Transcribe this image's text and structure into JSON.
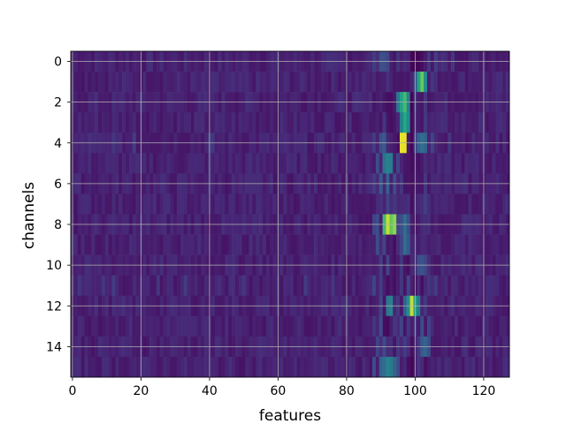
{
  "chart_data": {
    "type": "heatmap",
    "title": "",
    "xlabel": "features",
    "ylabel": "channels",
    "n_rows": 16,
    "n_cols": 128,
    "xlim": [
      -0.5,
      127.5
    ],
    "ylim": [
      15.5,
      -0.5
    ],
    "x_ticks": [
      0,
      20,
      40,
      60,
      80,
      100,
      120
    ],
    "y_ticks": [
      0,
      2,
      4,
      6,
      8,
      10,
      12,
      14
    ],
    "grid": true,
    "colormap": "viridis",
    "value_range": [
      0,
      1
    ],
    "background_level": 0.12,
    "features": [
      {
        "row": 0,
        "entries": [
          [
            88,
            0.22
          ],
          [
            90,
            0.3
          ],
          [
            91,
            0.3
          ],
          [
            92,
            0.25
          ],
          [
            95,
            0.18
          ],
          [
            99,
            0.02
          ],
          [
            100,
            0.0
          ],
          [
            101,
            0.02
          ],
          [
            102,
            0.05
          ],
          [
            104,
            0.2
          ],
          [
            106,
            0.22
          ],
          [
            108,
            0.18
          ],
          [
            111,
            0.2
          ]
        ]
      },
      {
        "row": 1,
        "entries": [
          [
            92,
            0.18
          ],
          [
            96,
            0.08
          ],
          [
            98,
            0.08
          ],
          [
            100,
            0.3
          ],
          [
            101,
            0.72
          ],
          [
            102,
            0.85
          ],
          [
            103,
            0.6
          ],
          [
            105,
            0.2
          ]
        ]
      },
      {
        "row": 2,
        "entries": [
          [
            90,
            0.12
          ],
          [
            92,
            0.05
          ],
          [
            93,
            0.05
          ],
          [
            95,
            0.5
          ],
          [
            96,
            0.72
          ],
          [
            97,
            0.8
          ],
          [
            98,
            0.55
          ],
          [
            99,
            0.02
          ],
          [
            100,
            0.18
          ],
          [
            103,
            0.2
          ]
        ]
      },
      {
        "row": 3,
        "entries": [
          [
            91,
            0.2
          ],
          [
            93,
            0.05
          ],
          [
            94,
            0.08
          ],
          [
            96,
            0.55
          ],
          [
            97,
            0.75
          ],
          [
            98,
            0.6
          ],
          [
            99,
            0.04
          ],
          [
            101,
            0.1
          ],
          [
            103,
            0.2
          ]
        ]
      },
      {
        "row": 4,
        "entries": [
          [
            5,
            0.18
          ],
          [
            12,
            0.2
          ],
          [
            18,
            0.22
          ],
          [
            40,
            0.2
          ],
          [
            41,
            0.2
          ],
          [
            86,
            0.15
          ],
          [
            88,
            0.22
          ],
          [
            90,
            0.3
          ],
          [
            91,
            0.35
          ],
          [
            93,
            0.12
          ],
          [
            95,
            0.05
          ],
          [
            96,
            0.98
          ],
          [
            97,
            0.98
          ],
          [
            99,
            0.02
          ],
          [
            100,
            0.22
          ],
          [
            101,
            0.4
          ],
          [
            102,
            0.45
          ],
          [
            103,
            0.4
          ],
          [
            105,
            0.25
          ],
          [
            110,
            0.2
          ]
        ]
      },
      {
        "row": 5,
        "entries": [
          [
            89,
            0.3
          ],
          [
            91,
            0.48
          ],
          [
            92,
            0.55
          ],
          [
            93,
            0.52
          ],
          [
            95,
            0.25
          ],
          [
            99,
            0.04
          ],
          [
            101,
            0.06
          ],
          [
            102,
            0.1
          ],
          [
            103,
            0.15
          ]
        ]
      },
      {
        "row": 6,
        "entries": [
          [
            88,
            0.22
          ],
          [
            90,
            0.35
          ],
          [
            92,
            0.4
          ],
          [
            94,
            0.3
          ],
          [
            96,
            0.2
          ],
          [
            99,
            0.06
          ],
          [
            101,
            0.08
          ],
          [
            103,
            0.2
          ]
        ]
      },
      {
        "row": 7,
        "entries": [
          [
            90,
            0.18
          ],
          [
            92,
            0.25
          ],
          [
            94,
            0.2
          ],
          [
            96,
            0.15
          ],
          [
            99,
            0.05
          ],
          [
            101,
            0.15
          ],
          [
            103,
            0.22
          ]
        ]
      },
      {
        "row": 8,
        "entries": [
          [
            88,
            0.25
          ],
          [
            89,
            0.3
          ],
          [
            91,
            0.8
          ],
          [
            92,
            0.95
          ],
          [
            93,
            0.85
          ],
          [
            94,
            0.9
          ],
          [
            95,
            0.25
          ],
          [
            96,
            0.3
          ],
          [
            97,
            0.45
          ],
          [
            98,
            0.3
          ],
          [
            100,
            0.08
          ],
          [
            101,
            0.1
          ],
          [
            102,
            0.15
          ]
        ]
      },
      {
        "row": 9,
        "entries": [
          [
            89,
            0.3
          ],
          [
            91,
            0.25
          ],
          [
            92,
            0.08
          ],
          [
            94,
            0.05
          ],
          [
            96,
            0.25
          ],
          [
            97,
            0.45
          ],
          [
            98,
            0.35
          ],
          [
            100,
            0.15
          ],
          [
            102,
            0.15
          ]
        ]
      },
      {
        "row": 10,
        "entries": [
          [
            90,
            0.22
          ],
          [
            92,
            0.25
          ],
          [
            94,
            0.06
          ],
          [
            96,
            0.2
          ],
          [
            98,
            0.05
          ],
          [
            100,
            0.15
          ],
          [
            101,
            0.3
          ],
          [
            102,
            0.32
          ],
          [
            103,
            0.25
          ]
        ]
      },
      {
        "row": 11,
        "entries": [
          [
            2,
            0.2
          ],
          [
            9,
            0.2
          ],
          [
            12,
            0.22
          ],
          [
            25,
            0.2
          ],
          [
            33,
            0.22
          ],
          [
            50,
            0.2
          ],
          [
            60,
            0.18
          ],
          [
            68,
            0.22
          ],
          [
            76,
            0.2
          ],
          [
            88,
            0.25
          ],
          [
            90,
            0.22
          ],
          [
            92,
            0.05
          ],
          [
            94,
            0.05
          ],
          [
            96,
            0.2
          ],
          [
            98,
            0.25
          ],
          [
            100,
            0.05
          ],
          [
            102,
            0.05
          ],
          [
            104,
            0.2
          ],
          [
            106,
            0.22
          ]
        ]
      },
      {
        "row": 12,
        "entries": [
          [
            90,
            0.25
          ],
          [
            92,
            0.5
          ],
          [
            93,
            0.55
          ],
          [
            95,
            0.2
          ],
          [
            97,
            0.4
          ],
          [
            98,
            0.62
          ],
          [
            99,
            0.95
          ],
          [
            100,
            0.7
          ],
          [
            101,
            0.5
          ],
          [
            103,
            0.2
          ]
        ]
      },
      {
        "row": 13,
        "entries": [
          [
            88,
            0.2
          ],
          [
            90,
            0.3
          ],
          [
            91,
            0.05
          ],
          [
            92,
            0.03
          ],
          [
            94,
            0.2
          ],
          [
            96,
            0.25
          ],
          [
            98,
            0.2
          ],
          [
            100,
            0.2
          ],
          [
            102,
            0.3
          ],
          [
            104,
            0.25
          ]
        ]
      },
      {
        "row": 14,
        "entries": [
          [
            89,
            0.25
          ],
          [
            91,
            0.28
          ],
          [
            95,
            0.2
          ],
          [
            97,
            0.22
          ],
          [
            99,
            0.05
          ],
          [
            101,
            0.2
          ],
          [
            102,
            0.35
          ],
          [
            103,
            0.4
          ],
          [
            104,
            0.3
          ]
        ]
      },
      {
        "row": 15,
        "entries": [
          [
            88,
            0.3
          ],
          [
            90,
            0.4
          ],
          [
            91,
            0.45
          ],
          [
            92,
            0.55
          ],
          [
            93,
            0.5
          ],
          [
            94,
            0.4
          ],
          [
            95,
            0.28
          ],
          [
            97,
            0.15
          ],
          [
            98,
            0.05
          ],
          [
            99,
            0.02
          ],
          [
            100,
            0.1
          ],
          [
            101,
            0.2
          ],
          [
            103,
            0.05
          ],
          [
            104,
            0.1
          ]
        ]
      }
    ]
  }
}
